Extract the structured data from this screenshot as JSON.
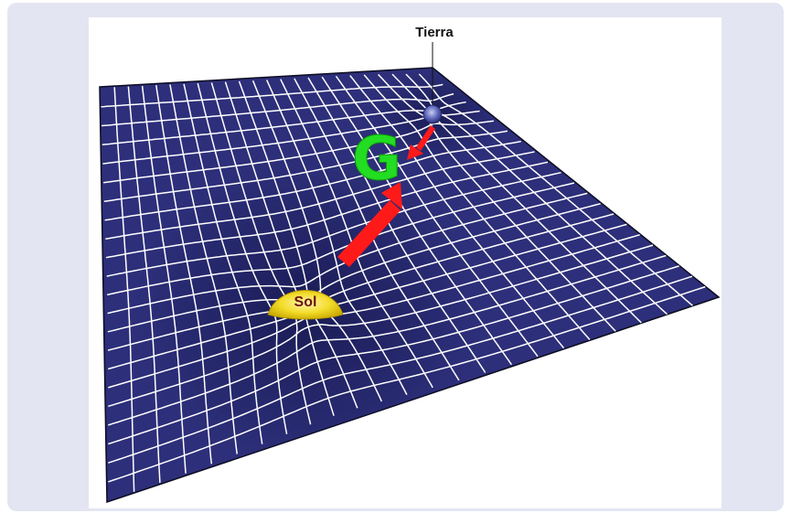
{
  "labels": {
    "earth": "Tierra",
    "sun": "Sol",
    "gravity": "G"
  },
  "colors": {
    "frame_background": "#e4e5f2",
    "fabric": "#2d2f7a",
    "grid_lines": "#ffffff",
    "sun": "#f3dc2a",
    "earth": "#5a63b8",
    "gravity_letter": "#22dd22",
    "force_arrows": "#ff1a1a"
  }
}
